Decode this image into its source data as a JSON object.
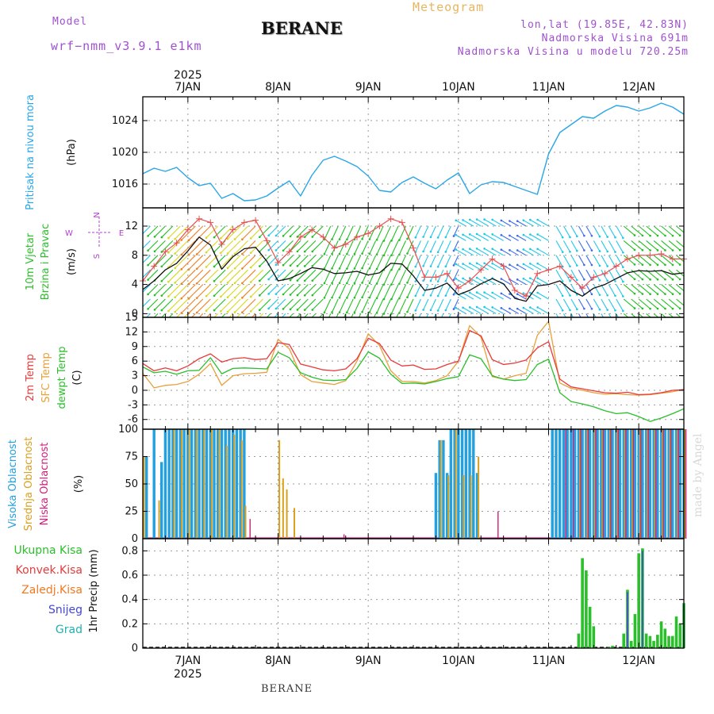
{
  "header": {
    "model_label": "Model",
    "model_value": "wrf−nmm_v3.9.1 e1km",
    "title": "BERANE",
    "chart_kind": "Meteogram",
    "location": "lon,lat (19.85E, 42.83N)",
    "elevation": "Nadmorska Visina 691m",
    "model_elevation": "Nadmorska Visina u modelu 720.25m",
    "footer": "BERANE",
    "credit": "made by Angel"
  },
  "colors": {
    "pressure": "#29a6e6",
    "temp2m": "#e83a3a",
    "sfc": "#e8a03a",
    "dewpt": "#2bbf2b",
    "high_cloud": "#22a0e0",
    "mid_cloud": "#d9a020",
    "low_cloud": "#d0207a",
    "precip_total": "#2bbf2b",
    "precip_conv": "#e83a3a",
    "precip_frz": "#f07a22",
    "snow": "#4444dd",
    "hail": "#22b0b0",
    "wind_label": "#2bbf2b",
    "dir_label": "#b040d0"
  },
  "chart_data": [
    {
      "type": "line",
      "name": "pressure",
      "ylabels": [
        "Pritisak na nivou mora",
        "(hPa)"
      ],
      "yticks": [
        1016,
        1020,
        1024
      ],
      "ylim": [
        1013,
        1027
      ],
      "x_day_ticks": [
        "7JAN",
        "8JAN",
        "9JAN",
        "10JAN",
        "11JAN",
        "12JAN"
      ],
      "x_top_year": "2025",
      "x_bottom_year": "2025",
      "x_hours": [
        0,
        3,
        6,
        9,
        12,
        15,
        18,
        21,
        24,
        27,
        30,
        33,
        36,
        39,
        42,
        45,
        48,
        51,
        54,
        57,
        60,
        63,
        66,
        69,
        72,
        75,
        78,
        81,
        84,
        87,
        90,
        93,
        96,
        99,
        102,
        105,
        108,
        111,
        114,
        117,
        120,
        123,
        126,
        129,
        132,
        135,
        138,
        141,
        144
      ],
      "values": [
        1017.3,
        1018.0,
        1017.6,
        1018.1,
        1016.8,
        1015.8,
        1016.1,
        1014.2,
        1014.8,
        1013.9,
        1014.0,
        1014.5,
        1015.5,
        1016.4,
        1014.5,
        1017.1,
        1019.0,
        1019.5,
        1018.9,
        1018.2,
        1017.0,
        1015.2,
        1015.0,
        1016.2,
        1016.9,
        1016.1,
        1015.4,
        1016.5,
        1017.4,
        1014.8,
        1015.9,
        1016.3,
        1016.2,
        1015.7,
        1015.2,
        1014.7,
        1019.8,
        1022.5,
        1023.5,
        1024.5,
        1024.3,
        1025.2,
        1025.9,
        1025.7,
        1025.2,
        1025.6,
        1026.2,
        1025.7,
        1024.8
      ]
    },
    {
      "type": "line",
      "name": "wind",
      "ylabels": [
        "10m Vjetar",
        "Brzina i Pravac",
        "(m/s)"
      ],
      "direction_legend": [
        "N",
        "W",
        "E",
        "S"
      ],
      "yticks": [
        0,
        4,
        8,
        12
      ],
      "ylim": [
        -0.5,
        14.5
      ],
      "x_hours": [
        0,
        3,
        6,
        9,
        12,
        15,
        18,
        21,
        24,
        27,
        30,
        33,
        36,
        39,
        42,
        45,
        48,
        51,
        54,
        57,
        60,
        63,
        66,
        69,
        72,
        75,
        78,
        81,
        84,
        87,
        90,
        93,
        96,
        99,
        102,
        105,
        108,
        111,
        114,
        117,
        120,
        123,
        126,
        129,
        132,
        135,
        138,
        141,
        144
      ],
      "speed": [
        3.3,
        4.5,
        6.0,
        6.9,
        8.6,
        10.5,
        9.4,
        6.1,
        7.8,
        8.9,
        9.1,
        7.2,
        4.5,
        4.8,
        5.5,
        6.3,
        6.1,
        5.5,
        5.6,
        5.8,
        5.3,
        5.6,
        6.9,
        6.8,
        5.2,
        3.2,
        3.5,
        4.2,
        2.6,
        3.2,
        4.1,
        4.8,
        4.1,
        2.1,
        1.7,
        3.8,
        4.0,
        4.5,
        3.2,
        2.4,
        3.5,
        4.0,
        4.8,
        5.6,
        5.9,
        5.8,
        5.9,
        5.4,
        5.6
      ],
      "gust": [
        4.5,
        6.5,
        8.5,
        9.7,
        11.5,
        13.0,
        12.5,
        9.5,
        11.5,
        12.5,
        12.8,
        10.0,
        7.0,
        8.5,
        10.5,
        11.5,
        10.5,
        9.0,
        9.5,
        10.5,
        11.0,
        12.0,
        13.0,
        12.5,
        9.0,
        5.0,
        5.0,
        5.5,
        3.5,
        4.5,
        6.0,
        7.5,
        6.5,
        3.2,
        2.4,
        5.5,
        6.0,
        6.5,
        5.0,
        3.5,
        5.0,
        5.5,
        6.5,
        7.5,
        8.0,
        8.0,
        8.2,
        7.5,
        7.5
      ]
    },
    {
      "type": "line",
      "name": "temperature",
      "ylabels": [
        "2m Temp",
        "SFC Temp",
        "dewpt Temp",
        "(C)"
      ],
      "yticks": [
        -6,
        -3,
        0,
        3,
        6,
        9,
        12,
        15
      ],
      "ylim": [
        -8,
        15
      ],
      "x_hours": [
        0,
        3,
        6,
        9,
        12,
        15,
        18,
        21,
        24,
        27,
        30,
        33,
        36,
        39,
        42,
        45,
        48,
        51,
        54,
        57,
        60,
        63,
        66,
        69,
        72,
        75,
        78,
        81,
        84,
        87,
        90,
        93,
        96,
        99,
        102,
        105,
        108,
        111,
        114,
        117,
        120,
        123,
        126,
        129,
        132,
        135,
        138,
        141,
        144
      ],
      "series": [
        {
          "name": "2m Temp",
          "values": [
            5.5,
            4.0,
            4.6,
            4.0,
            5.0,
            6.5,
            7.5,
            5.8,
            6.5,
            6.7,
            6.3,
            6.5,
            9.8,
            9.4,
            5.4,
            4.8,
            4.2,
            4.0,
            4.4,
            6.5,
            10.7,
            9.6,
            6.2,
            5.0,
            5.2,
            4.3,
            4.4,
            5.3,
            6.0,
            12.3,
            11.2,
            6.3,
            5.3,
            5.6,
            6.2,
            8.7,
            10.0,
            2.3,
            0.7,
            0.3,
            -0.1,
            -0.5,
            -0.6,
            -0.4,
            -0.9,
            -0.8,
            -0.5,
            0.0,
            0.1
          ]
        },
        {
          "name": "SFC Temp",
          "values": [
            3.5,
            0.5,
            1.0,
            1.2,
            1.8,
            3.3,
            5.5,
            1.0,
            3.0,
            3.4,
            3.5,
            3.7,
            10.5,
            8.5,
            3.2,
            1.8,
            1.5,
            1.2,
            2.0,
            6.0,
            11.6,
            9.2,
            4.0,
            1.8,
            1.8,
            1.5,
            2.0,
            3.0,
            6.0,
            13.3,
            10.9,
            2.8,
            2.3,
            3.0,
            3.5,
            11.3,
            14.2,
            1.5,
            0.4,
            0.0,
            -0.5,
            -0.8,
            -0.7,
            -0.9,
            -1.0,
            -0.9,
            -0.6,
            -0.3,
            0.2
          ]
        },
        {
          "name": "dewpt Temp",
          "values": [
            4.8,
            3.6,
            3.9,
            3.3,
            4.0,
            4.1,
            6.7,
            3.4,
            4.5,
            4.6,
            4.5,
            4.4,
            7.8,
            6.7,
            3.6,
            2.7,
            2.1,
            2.0,
            2.2,
            4.5,
            7.9,
            6.6,
            3.3,
            1.4,
            1.5,
            1.3,
            1.8,
            2.4,
            2.8,
            7.3,
            6.5,
            3.0,
            2.3,
            2.0,
            2.2,
            5.3,
            6.4,
            -0.5,
            -2.3,
            -2.8,
            -3.4,
            -4.2,
            -4.8,
            -4.6,
            -5.4,
            -6.4,
            -5.7,
            -4.8,
            -3.8
          ]
        }
      ]
    },
    {
      "type": "bar",
      "name": "cloud",
      "ylabels": [
        "Visoka Oblacnost",
        "Srednja Oblacnost",
        "Niska Oblacnost",
        "(%)"
      ],
      "yticks": [
        0,
        25,
        50,
        75,
        100
      ],
      "ylim": [
        0,
        100
      ],
      "high": [
        [
          1,
          75
        ],
        [
          3,
          100
        ],
        [
          5,
          70
        ],
        [
          6,
          100
        ],
        [
          7,
          100
        ],
        [
          8,
          100
        ],
        [
          9,
          100
        ],
        [
          10,
          100
        ],
        [
          11,
          100
        ],
        [
          12,
          100
        ],
        [
          13,
          100
        ],
        [
          14,
          100
        ],
        [
          15,
          100
        ],
        [
          16,
          100
        ],
        [
          17,
          100
        ],
        [
          18,
          100
        ],
        [
          19,
          100
        ],
        [
          20,
          100
        ],
        [
          21,
          100
        ],
        [
          22,
          100
        ],
        [
          23,
          100
        ],
        [
          24,
          100
        ],
        [
          25,
          100
        ],
        [
          26,
          100
        ],
        [
          27,
          100
        ],
        [
          78,
          60
        ],
        [
          79,
          90
        ],
        [
          80,
          90
        ],
        [
          81,
          60
        ],
        [
          82,
          100
        ],
        [
          83,
          100
        ],
        [
          84,
          100
        ],
        [
          85,
          100
        ],
        [
          86,
          100
        ],
        [
          87,
          100
        ],
        [
          88,
          100
        ],
        [
          89,
          60
        ],
        [
          109,
          100
        ],
        [
          110,
          100
        ],
        [
          111,
          100
        ],
        [
          112,
          100
        ],
        [
          113,
          100
        ],
        [
          114,
          100
        ],
        [
          115,
          100
        ],
        [
          116,
          100
        ],
        [
          117,
          100
        ],
        [
          118,
          100
        ],
        [
          119,
          100
        ],
        [
          120,
          100
        ],
        [
          121,
          100
        ],
        [
          122,
          100
        ],
        [
          123,
          100
        ],
        [
          124,
          100
        ],
        [
          125,
          100
        ],
        [
          126,
          100
        ],
        [
          127,
          100
        ],
        [
          128,
          100
        ],
        [
          129,
          100
        ],
        [
          130,
          100
        ],
        [
          131,
          100
        ],
        [
          132,
          100
        ],
        [
          133,
          100
        ],
        [
          134,
          100
        ],
        [
          135,
          100
        ],
        [
          136,
          100
        ],
        [
          137,
          100
        ],
        [
          138,
          100
        ],
        [
          139,
          100
        ],
        [
          140,
          100
        ],
        [
          141,
          100
        ],
        [
          142,
          100
        ],
        [
          143,
          100
        ],
        [
          144,
          100
        ]
      ],
      "mid": [
        [
          0,
          75
        ],
        [
          4,
          35
        ],
        [
          8,
          100
        ],
        [
          10,
          100
        ],
        [
          12,
          100
        ],
        [
          14,
          100
        ],
        [
          16,
          100
        ],
        [
          18,
          100
        ],
        [
          20,
          100
        ],
        [
          22,
          85
        ],
        [
          24,
          95
        ],
        [
          26,
          90
        ],
        [
          27,
          30
        ],
        [
          36,
          90
        ],
        [
          37,
          55
        ],
        [
          38,
          45
        ],
        [
          40,
          28
        ],
        [
          79,
          90
        ],
        [
          81,
          58
        ],
        [
          83,
          100
        ],
        [
          85,
          58
        ],
        [
          87,
          58
        ],
        [
          89,
          75
        ],
        [
          116,
          100
        ],
        [
          118,
          100
        ],
        [
          120,
          100
        ],
        [
          122,
          100
        ],
        [
          124,
          100
        ],
        [
          126,
          100
        ],
        [
          128,
          100
        ],
        [
          130,
          100
        ],
        [
          132,
          100
        ],
        [
          134,
          100
        ],
        [
          136,
          100
        ],
        [
          138,
          100
        ],
        [
          140,
          100
        ],
        [
          142,
          100
        ],
        [
          144,
          100
        ]
      ],
      "low": [
        [
          28,
          18
        ],
        [
          53,
          4
        ],
        [
          94,
          25
        ],
        [
          112,
          100
        ],
        [
          114,
          100
        ],
        [
          116,
          100
        ],
        [
          118,
          100
        ],
        [
          120,
          100
        ],
        [
          122,
          100
        ],
        [
          124,
          100
        ],
        [
          126,
          100
        ],
        [
          128,
          100
        ],
        [
          130,
          100
        ],
        [
          132,
          100
        ],
        [
          134,
          100
        ],
        [
          136,
          100
        ],
        [
          138,
          100
        ],
        [
          140,
          100
        ],
        [
          142,
          100
        ],
        [
          144,
          100
        ]
      ]
    },
    {
      "type": "bar",
      "name": "precipitation",
      "ylabels": [
        "1hr Precip (mm)"
      ],
      "legend": [
        "Ukupna Kisa",
        "Konvek.Kisa",
        "Zaledj.Kisa",
        "Snijeg",
        "Grad"
      ],
      "yticks": [
        0,
        0.2,
        0.4,
        0.6,
        0.8
      ],
      "ylim": [
        0,
        0.9
      ],
      "rain": [
        [
          116,
          0.12
        ],
        [
          117,
          0.74
        ],
        [
          118,
          0.64
        ],
        [
          119,
          0.34
        ],
        [
          120,
          0.18
        ],
        [
          124,
          0.01
        ],
        [
          125,
          0.02
        ],
        [
          128,
          0.12
        ],
        [
          129,
          0.48
        ],
        [
          130,
          0.06
        ],
        [
          131,
          0.28
        ],
        [
          132,
          0.78
        ],
        [
          133,
          0.82
        ],
        [
          134,
          0.12
        ],
        [
          135,
          0.1
        ],
        [
          136,
          0.06
        ],
        [
          137,
          0.11
        ],
        [
          138,
          0.22
        ],
        [
          139,
          0.16
        ],
        [
          140,
          0.1
        ],
        [
          141,
          0.1
        ],
        [
          142,
          0.26
        ],
        [
          143,
          0.2
        ],
        [
          144,
          0.37
        ]
      ],
      "snow": [
        [
          129,
          0.46
        ],
        [
          133,
          0.8
        ],
        [
          144,
          0.36
        ]
      ]
    }
  ]
}
